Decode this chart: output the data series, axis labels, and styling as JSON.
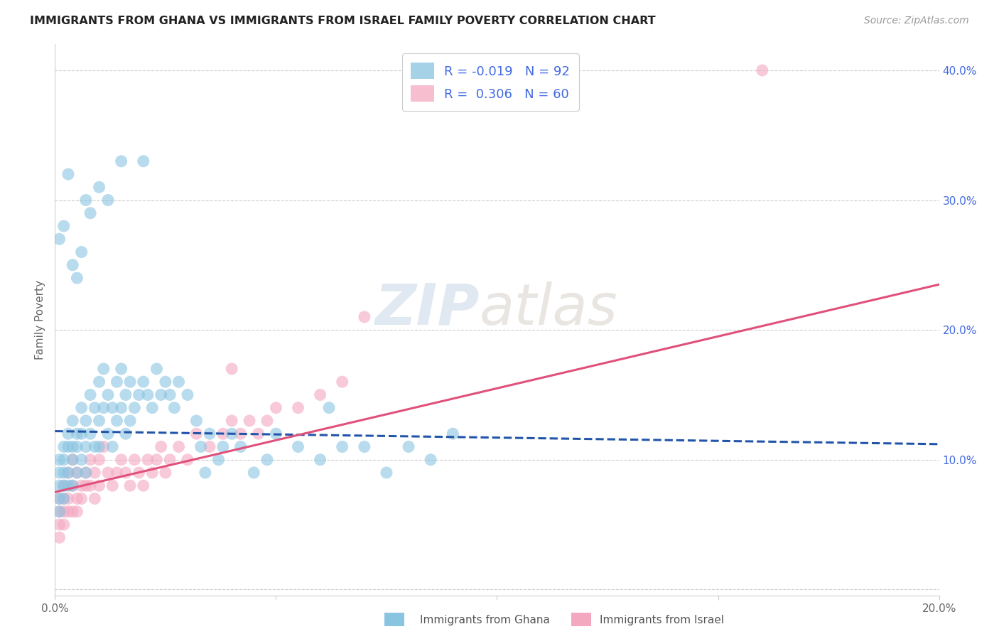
{
  "title": "IMMIGRANTS FROM GHANA VS IMMIGRANTS FROM ISRAEL FAMILY POVERTY CORRELATION CHART",
  "source": "Source: ZipAtlas.com",
  "ylabel": "Family Poverty",
  "xlim": [
    0.0,
    0.2
  ],
  "ylim": [
    -0.005,
    0.42
  ],
  "xticks": [
    0.0,
    0.05,
    0.1,
    0.15,
    0.2
  ],
  "yticks": [
    0.0,
    0.1,
    0.2,
    0.3,
    0.4
  ],
  "xtick_labels": [
    "0.0%",
    "",
    "",
    "",
    "20.0%"
  ],
  "ytick_labels_right": [
    "",
    "10.0%",
    "20.0%",
    "30.0%",
    "40.0%"
  ],
  "ghana_color": "#89c4e1",
  "israel_color": "#f4a8c0",
  "ghana_R": -0.019,
  "ghana_N": 92,
  "israel_R": 0.306,
  "israel_N": 60,
  "watermark_zip": "ZIP",
  "watermark_atlas": "atlas",
  "ghana_line_x": [
    0.0,
    0.2
  ],
  "ghana_line_y": [
    0.122,
    0.112
  ],
  "ghana_line_style": "--",
  "israel_line_x": [
    0.0,
    0.2
  ],
  "israel_line_y": [
    0.075,
    0.235
  ],
  "israel_line_style": "-",
  "ghana_scatter_x": [
    0.001,
    0.001,
    0.001,
    0.001,
    0.001,
    0.002,
    0.002,
    0.002,
    0.002,
    0.002,
    0.003,
    0.003,
    0.003,
    0.003,
    0.004,
    0.004,
    0.004,
    0.004,
    0.005,
    0.005,
    0.005,
    0.006,
    0.006,
    0.006,
    0.007,
    0.007,
    0.007,
    0.008,
    0.008,
    0.009,
    0.009,
    0.01,
    0.01,
    0.01,
    0.011,
    0.011,
    0.012,
    0.012,
    0.013,
    0.013,
    0.014,
    0.014,
    0.015,
    0.015,
    0.016,
    0.016,
    0.017,
    0.017,
    0.018,
    0.019,
    0.02,
    0.021,
    0.022,
    0.023,
    0.024,
    0.025,
    0.026,
    0.027,
    0.028,
    0.03,
    0.032,
    0.033,
    0.034,
    0.035,
    0.037,
    0.038,
    0.04,
    0.042,
    0.045,
    0.048,
    0.05,
    0.055,
    0.06,
    0.062,
    0.065,
    0.07,
    0.075,
    0.08,
    0.085,
    0.09,
    0.001,
    0.002,
    0.003,
    0.004,
    0.005,
    0.006,
    0.007,
    0.008,
    0.01,
    0.012,
    0.015,
    0.02
  ],
  "ghana_scatter_y": [
    0.1,
    0.09,
    0.08,
    0.07,
    0.06,
    0.11,
    0.1,
    0.09,
    0.08,
    0.07,
    0.12,
    0.11,
    0.09,
    0.08,
    0.13,
    0.11,
    0.1,
    0.08,
    0.12,
    0.11,
    0.09,
    0.14,
    0.12,
    0.1,
    0.13,
    0.11,
    0.09,
    0.15,
    0.12,
    0.14,
    0.11,
    0.16,
    0.13,
    0.11,
    0.17,
    0.14,
    0.15,
    0.12,
    0.14,
    0.11,
    0.16,
    0.13,
    0.17,
    0.14,
    0.15,
    0.12,
    0.16,
    0.13,
    0.14,
    0.15,
    0.16,
    0.15,
    0.14,
    0.17,
    0.15,
    0.16,
    0.15,
    0.14,
    0.16,
    0.15,
    0.13,
    0.11,
    0.09,
    0.12,
    0.1,
    0.11,
    0.12,
    0.11,
    0.09,
    0.1,
    0.12,
    0.11,
    0.1,
    0.14,
    0.11,
    0.11,
    0.09,
    0.11,
    0.1,
    0.12,
    0.27,
    0.28,
    0.32,
    0.25,
    0.24,
    0.26,
    0.3,
    0.29,
    0.31,
    0.3,
    0.33,
    0.33
  ],
  "israel_scatter_x": [
    0.001,
    0.001,
    0.001,
    0.001,
    0.002,
    0.002,
    0.002,
    0.002,
    0.003,
    0.003,
    0.003,
    0.004,
    0.004,
    0.004,
    0.005,
    0.005,
    0.005,
    0.006,
    0.006,
    0.007,
    0.007,
    0.008,
    0.008,
    0.009,
    0.009,
    0.01,
    0.01,
    0.011,
    0.012,
    0.013,
    0.014,
    0.015,
    0.016,
    0.017,
    0.018,
    0.019,
    0.02,
    0.021,
    0.022,
    0.023,
    0.024,
    0.025,
    0.026,
    0.028,
    0.03,
    0.032,
    0.035,
    0.038,
    0.04,
    0.042,
    0.044,
    0.046,
    0.048,
    0.05,
    0.055,
    0.06,
    0.065,
    0.04,
    0.07,
    0.16
  ],
  "israel_scatter_y": [
    0.07,
    0.06,
    0.05,
    0.04,
    0.08,
    0.07,
    0.06,
    0.05,
    0.09,
    0.07,
    0.06,
    0.1,
    0.08,
    0.06,
    0.09,
    0.07,
    0.06,
    0.08,
    0.07,
    0.09,
    0.08,
    0.1,
    0.08,
    0.09,
    0.07,
    0.1,
    0.08,
    0.11,
    0.09,
    0.08,
    0.09,
    0.1,
    0.09,
    0.08,
    0.1,
    0.09,
    0.08,
    0.1,
    0.09,
    0.1,
    0.11,
    0.09,
    0.1,
    0.11,
    0.1,
    0.12,
    0.11,
    0.12,
    0.13,
    0.12,
    0.13,
    0.12,
    0.13,
    0.14,
    0.14,
    0.15,
    0.16,
    0.17,
    0.21,
    0.4
  ],
  "background_color": "#ffffff",
  "grid_color": "#cccccc",
  "title_color": "#222222",
  "axis_label_color": "#666666",
  "right_tick_color": "#4169E1",
  "legend_text_color": "#4169E1"
}
